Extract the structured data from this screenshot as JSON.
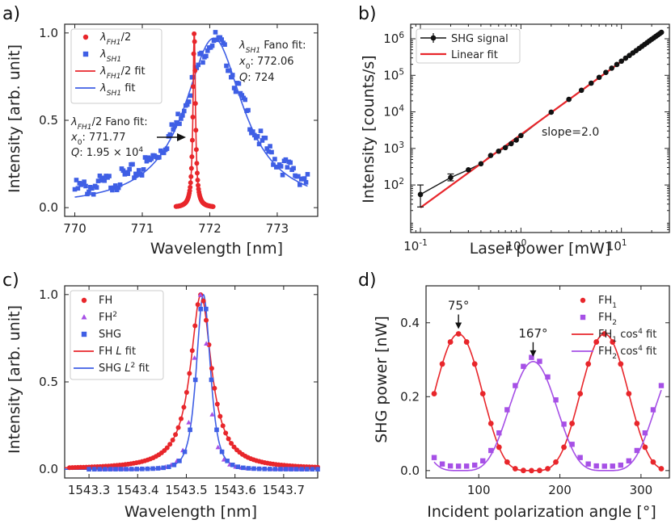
{
  "colors": {
    "red": "#e8262b",
    "blue": "#3f5fe5",
    "purple": "#a650e6",
    "black": "#1a1a1a"
  },
  "chart_data": [
    {
      "panel": "a)",
      "type": "scatter",
      "xlabel": "Wavelength [nm]",
      "ylabel": "Intensity [arb. unit]",
      "xlim": [
        769.85,
        773.6
      ],
      "ylim": [
        -0.05,
        1.05
      ],
      "xticks": [
        770,
        771,
        772,
        773
      ],
      "yticks": [
        0.0,
        0.5,
        1.0
      ],
      "legend": [
        "λFH1/2",
        "λSH1",
        "λFH1/2 fit",
        "λSH1 fit"
      ],
      "series": [
        {
          "name": "λFH1/2",
          "marker": "circle",
          "color": "red",
          "fano": {
            "x0": 771.77,
            "gamma": 0.022,
            "q": 0,
            "ymax": 1.0,
            "base": 0.0
          },
          "x_start": 771.5,
          "x_end": 772.05,
          "n_points": 85
        },
        {
          "name": "λSH1",
          "marker": "square",
          "color": "blue",
          "fano": {
            "x0": 772.06,
            "gamma": 0.53,
            "q": 0,
            "ymax": 0.97,
            "base": 0.0
          },
          "x_start": 770.0,
          "x_end": 773.45,
          "n_points": 150
        }
      ],
      "annotations": {
        "sh_fit": [
          "λSH1 Fano fit:",
          "x0: 772.06",
          "Q: 724"
        ],
        "fh_fit": [
          "λFH1/2 Fano fit:",
          "x0: 771.77",
          "Q: 1.95 × 10^4"
        ]
      }
    },
    {
      "panel": "b)",
      "type": "line",
      "xscale": "log",
      "yscale": "log",
      "xlabel": "Laser power [mW]",
      "ylabel": "Intensity [counts/s]",
      "xlim": [
        0.08,
        30
      ],
      "ylim": [
        5,
        2500000
      ],
      "xticks": [
        "10^-1",
        "10^0",
        "10^1"
      ],
      "yticks": [
        "10^2",
        "10^3",
        "10^4",
        "10^5",
        "10^6"
      ],
      "legend": [
        "SHG signal",
        "Linear fit"
      ],
      "x": [
        0.1,
        0.2,
        0.3,
        0.4,
        0.5,
        0.6,
        0.7,
        0.8,
        0.9,
        1.0,
        2.0,
        3.0,
        4.0,
        5.0,
        6.0,
        7.0,
        8.0,
        9.0,
        10.0,
        11.0,
        12.0,
        13.0,
        14.0,
        15.0,
        16.0,
        17.0,
        18.0,
        19.0,
        20.0,
        21.0,
        22.0,
        23.0,
        24.0,
        25.0
      ],
      "y": [
        55,
        160,
        260,
        380,
        640,
        840,
        1050,
        1350,
        1700,
        2250,
        9800,
        22000,
        39000,
        61000,
        88000,
        120000,
        157000,
        198000,
        244000,
        295000,
        350000,
        410000,
        475000,
        545000,
        620000,
        700000,
        785000,
        875000,
        970000,
        1065000,
        1165000,
        1270000,
        1380000,
        1500000
      ],
      "yerr_low": [
        30,
        30,
        0,
        0,
        0,
        0,
        0,
        0,
        0,
        0,
        0,
        0,
        0,
        0,
        0,
        0,
        0,
        0,
        0,
        0,
        0,
        0,
        0,
        0,
        0,
        0,
        0,
        0,
        0,
        0,
        0,
        0,
        0,
        0
      ],
      "yerr_high": [
        45,
        40,
        0,
        0,
        0,
        0,
        0,
        0,
        0,
        0,
        0,
        0,
        0,
        0,
        0,
        0,
        0,
        0,
        0,
        0,
        0,
        0,
        0,
        0,
        0,
        0,
        0,
        0,
        0,
        0,
        0,
        0,
        0,
        0
      ],
      "fit": {
        "slope": 2.0,
        "coef": 2400
      },
      "annotation": "slope=2.0"
    },
    {
      "panel": "c)",
      "type": "scatter",
      "xlabel": "Wavelength [nm]",
      "ylabel": "Intensity [arb. unit]",
      "xlim": [
        1543.25,
        1543.77
      ],
      "ylim": [
        -0.05,
        1.05
      ],
      "xticks": [
        1543.3,
        1543.4,
        1543.5,
        1543.6,
        1543.7
      ],
      "yticks": [
        0.0,
        0.5,
        1.0
      ],
      "legend": [
        "FH",
        "FH²",
        "SHG",
        "FH L fit",
        "SHG L² fit"
      ],
      "series": [
        {
          "name": "FH",
          "marker": "circle",
          "color": "red",
          "x0": 1543.53,
          "gamma": 0.026,
          "power": 1,
          "x_start": 1543.26,
          "x_end": 1543.77,
          "n_points": 90
        },
        {
          "name": "FH²",
          "marker": "triangle",
          "color": "purple",
          "x0": 1543.53,
          "gamma": 0.026,
          "power": 2,
          "x_start": 1543.3,
          "x_end": 1543.77,
          "n_points": 40
        },
        {
          "name": "SHG",
          "marker": "square",
          "color": "blue",
          "x0": 1543.535,
          "gamma": 0.026,
          "power": 2,
          "x_start": 1543.3,
          "x_end": 1543.77,
          "n_points": 44
        }
      ]
    },
    {
      "panel": "d)",
      "type": "scatter",
      "xlabel": "Incident polarization angle [°]",
      "ylabel": "SHG power [nW]",
      "xlim": [
        35,
        335
      ],
      "ylim": [
        -0.02,
        0.5
      ],
      "xticks": [
        100,
        200,
        300
      ],
      "yticks": [
        0.0,
        0.2,
        0.4
      ],
      "legend": [
        "FH1",
        "FH2",
        "FH1 cos4 fit",
        "FH2 cos4 fit"
      ],
      "series": [
        {
          "name": "FH1",
          "marker": "circle",
          "color": "red",
          "amp": 0.37,
          "peak": 75,
          "x": [
            45,
            55,
            65,
            75,
            85,
            95,
            105,
            115,
            125,
            135,
            145,
            155,
            165,
            175,
            185,
            195,
            205,
            215,
            225,
            235,
            245,
            255,
            265,
            275,
            285,
            295,
            305,
            315,
            325
          ]
        },
        {
          "name": "FH2",
          "marker": "square",
          "color": "purple",
          "amp": 0.295,
          "peak": 167,
          "x": [
            45,
            55,
            65,
            75,
            85,
            95,
            105,
            115,
            125,
            135,
            145,
            155,
            165,
            175,
            185,
            195,
            205,
            215,
            225,
            235,
            245,
            255,
            265,
            275,
            285,
            295,
            305,
            315,
            325
          ]
        }
      ],
      "peak_labels": [
        "75°",
        "167°"
      ]
    }
  ]
}
